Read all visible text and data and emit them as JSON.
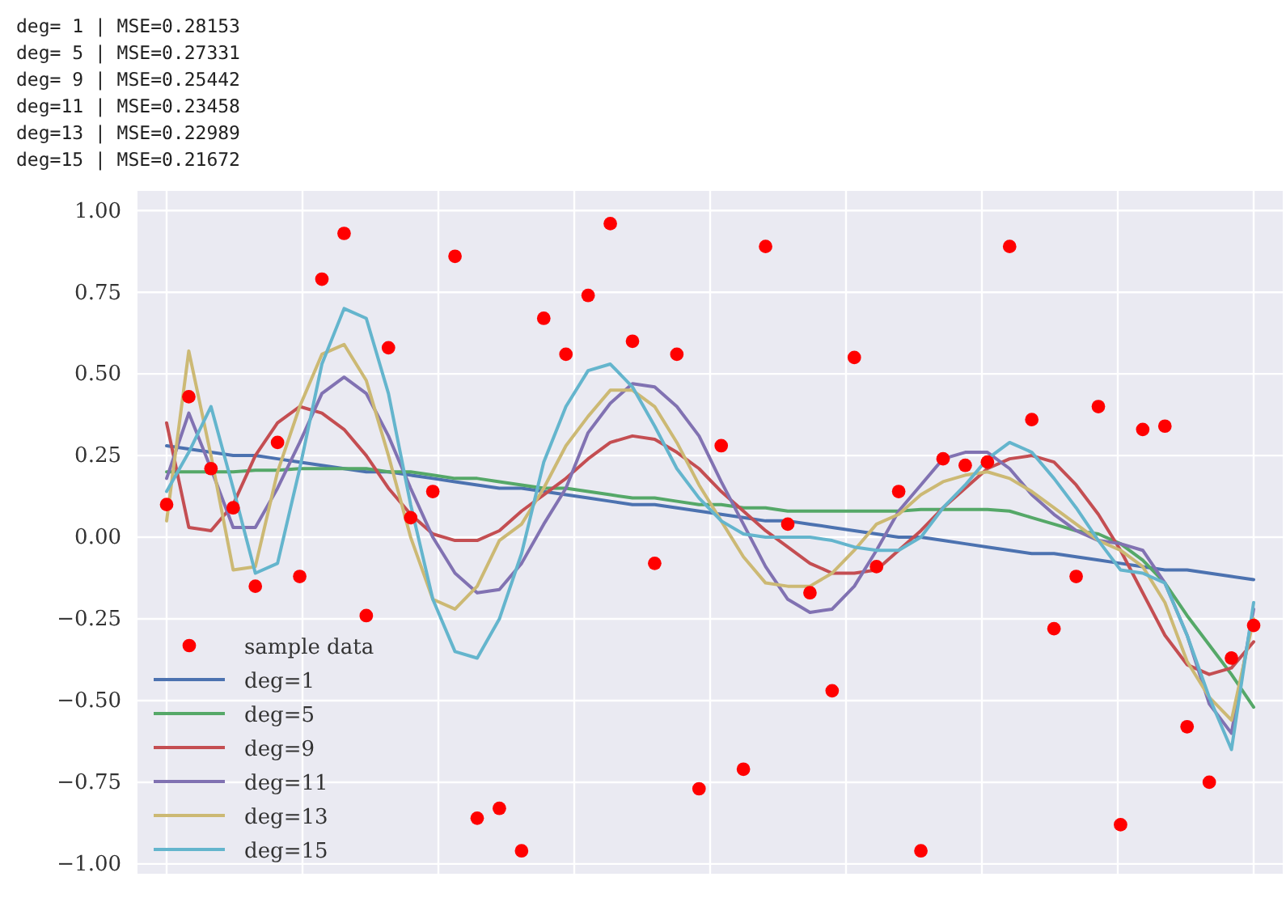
{
  "chart_data": {
    "type": "line",
    "annotations": [
      "deg= 1 | MSE=0.28153",
      "deg= 5 | MSE=0.27331",
      "deg= 9 | MSE=0.25442",
      "deg=11 | MSE=0.23458",
      "deg=13 | MSE=0.22989",
      "deg=15 | MSE=0.21672"
    ],
    "categories": [
      null,
      null,
      null,
      null,
      null,
      null,
      null,
      null,
      null,
      null,
      null,
      null,
      null,
      null,
      null,
      null,
      null,
      null,
      null,
      null,
      null,
      null,
      null,
      null,
      null,
      null,
      null,
      null,
      null,
      null,
      null,
      null,
      null,
      null,
      null,
      null,
      null,
      null,
      null,
      null,
      null,
      null,
      null,
      null,
      null,
      null,
      null,
      null,
      null,
      null
    ],
    "series": [
      {
        "name": "sample data",
        "type": "scatter",
        "color": "#ff0000",
        "marker": "circle",
        "values": [
          0.1,
          0.43,
          0.21,
          0.09,
          -0.15,
          0.29,
          -0.12,
          0.79,
          0.93,
          -0.24,
          0.58,
          0.06,
          0.14,
          0.86,
          -0.86,
          -0.83,
          -0.96,
          0.67,
          0.56,
          0.74,
          0.96,
          0.6,
          -0.08,
          0.56,
          -0.77,
          0.28,
          -0.71,
          0.89,
          0.04,
          -0.17,
          -0.47,
          0.55,
          -0.09,
          0.14,
          -0.96,
          0.24,
          0.22,
          0.23,
          0.89,
          0.36,
          -0.28,
          -0.12,
          0.4,
          -0.88,
          0.33,
          0.34,
          -0.58,
          -0.75,
          -0.37,
          -0.27
        ]
      },
      {
        "name": "deg=1",
        "color": "#4c72b0",
        "values": [
          0.28,
          0.27,
          0.26,
          0.25,
          0.25,
          0.24,
          0.23,
          0.22,
          0.21,
          0.2,
          0.2,
          0.19,
          0.18,
          0.17,
          0.16,
          0.15,
          0.15,
          0.14,
          0.13,
          0.12,
          0.11,
          0.1,
          0.1,
          0.09,
          0.08,
          0.07,
          0.06,
          0.05,
          0.05,
          0.04,
          0.03,
          0.02,
          0.01,
          0.0,
          0.0,
          -0.01,
          -0.02,
          -0.03,
          -0.04,
          -0.05,
          -0.05,
          -0.06,
          -0.07,
          -0.08,
          -0.09,
          -0.1,
          -0.1,
          -0.11,
          -0.12,
          -0.13
        ]
      },
      {
        "name": "deg=5",
        "color": "#55a868",
        "values": [
          0.2,
          0.2,
          0.2,
          0.2,
          0.205,
          0.205,
          0.21,
          0.21,
          0.21,
          0.21,
          0.2,
          0.2,
          0.19,
          0.18,
          0.18,
          0.17,
          0.16,
          0.15,
          0.15,
          0.14,
          0.13,
          0.12,
          0.12,
          0.11,
          0.1,
          0.1,
          0.09,
          0.09,
          0.08,
          0.08,
          0.08,
          0.08,
          0.08,
          0.08,
          0.085,
          0.085,
          0.085,
          0.085,
          0.08,
          0.06,
          0.04,
          0.02,
          0.01,
          -0.02,
          -0.07,
          -0.14,
          -0.24,
          -0.33,
          -0.42,
          -0.52
        ]
      },
      {
        "name": "deg=9",
        "color": "#c44e52",
        "values": [
          0.35,
          0.03,
          0.02,
          0.1,
          0.25,
          0.35,
          0.4,
          0.38,
          0.33,
          0.25,
          0.15,
          0.07,
          0.01,
          -0.01,
          -0.01,
          0.02,
          0.08,
          0.13,
          0.18,
          0.24,
          0.29,
          0.31,
          0.3,
          0.26,
          0.21,
          0.14,
          0.08,
          0.02,
          -0.03,
          -0.08,
          -0.11,
          -0.11,
          -0.1,
          -0.04,
          0.02,
          0.09,
          0.15,
          0.21,
          0.24,
          0.25,
          0.23,
          0.16,
          0.07,
          -0.04,
          -0.17,
          -0.3,
          -0.39,
          -0.42,
          -0.4,
          -0.32
        ]
      },
      {
        "name": "deg=11",
        "color": "#8172b2",
        "values": [
          0.18,
          0.38,
          0.21,
          0.03,
          0.03,
          0.15,
          0.29,
          0.44,
          0.49,
          0.44,
          0.31,
          0.15,
          0.0,
          -0.11,
          -0.17,
          -0.16,
          -0.08,
          0.04,
          0.15,
          0.32,
          0.41,
          0.47,
          0.46,
          0.4,
          0.31,
          0.17,
          0.04,
          -0.09,
          -0.19,
          -0.23,
          -0.22,
          -0.15,
          -0.04,
          0.08,
          0.16,
          0.24,
          0.26,
          0.26,
          0.21,
          0.13,
          0.07,
          0.02,
          -0.01,
          -0.02,
          -0.04,
          -0.14,
          -0.3,
          -0.51,
          -0.6,
          -0.22
        ]
      },
      {
        "name": "deg=13",
        "color": "#ccb974",
        "values": [
          0.05,
          0.57,
          0.25,
          -0.1,
          -0.09,
          0.2,
          0.4,
          0.56,
          0.59,
          0.48,
          0.25,
          0.0,
          -0.19,
          -0.22,
          -0.15,
          -0.01,
          0.04,
          0.15,
          0.28,
          0.37,
          0.45,
          0.45,
          0.4,
          0.29,
          0.16,
          0.05,
          -0.06,
          -0.14,
          -0.15,
          -0.15,
          -0.11,
          -0.04,
          0.04,
          0.07,
          0.13,
          0.17,
          0.19,
          0.2,
          0.18,
          0.14,
          0.09,
          0.04,
          -0.01,
          -0.04,
          -0.09,
          -0.2,
          -0.38,
          -0.49,
          -0.56,
          -0.25
        ]
      },
      {
        "name": "deg=15",
        "color": "#64b5cd",
        "values": [
          0.14,
          0.26,
          0.4,
          0.15,
          -0.11,
          -0.08,
          0.21,
          0.53,
          0.7,
          0.67,
          0.44,
          0.1,
          -0.19,
          -0.35,
          -0.37,
          -0.25,
          -0.05,
          0.23,
          0.4,
          0.51,
          0.53,
          0.46,
          0.34,
          0.21,
          0.12,
          0.05,
          0.01,
          0.0,
          0.0,
          0.0,
          -0.01,
          -0.03,
          -0.04,
          -0.04,
          0.0,
          0.09,
          0.16,
          0.24,
          0.29,
          0.26,
          0.18,
          0.09,
          -0.01,
          -0.1,
          -0.11,
          -0.14,
          -0.3,
          -0.49,
          -0.65,
          -0.2
        ]
      }
    ],
    "ylim": [
      -1.03,
      1.06
    ],
    "yticks": [
      {
        "value": 1,
        "label": "1.00"
      },
      {
        "value": 0.75,
        "label": "0.75"
      },
      {
        "value": 0.5,
        "label": "0.50"
      },
      {
        "value": 0.25,
        "label": "0.25"
      },
      {
        "value": 0,
        "label": "0.00"
      },
      {
        "value": -0.25,
        "label": "−0.25"
      },
      {
        "value": -0.5,
        "label": "−0.50"
      },
      {
        "value": -0.75,
        "label": "−0.75"
      },
      {
        "value": -1,
        "label": "−1.00"
      }
    ],
    "grid": true,
    "legend": "bottom left",
    "line_style": "solid"
  }
}
